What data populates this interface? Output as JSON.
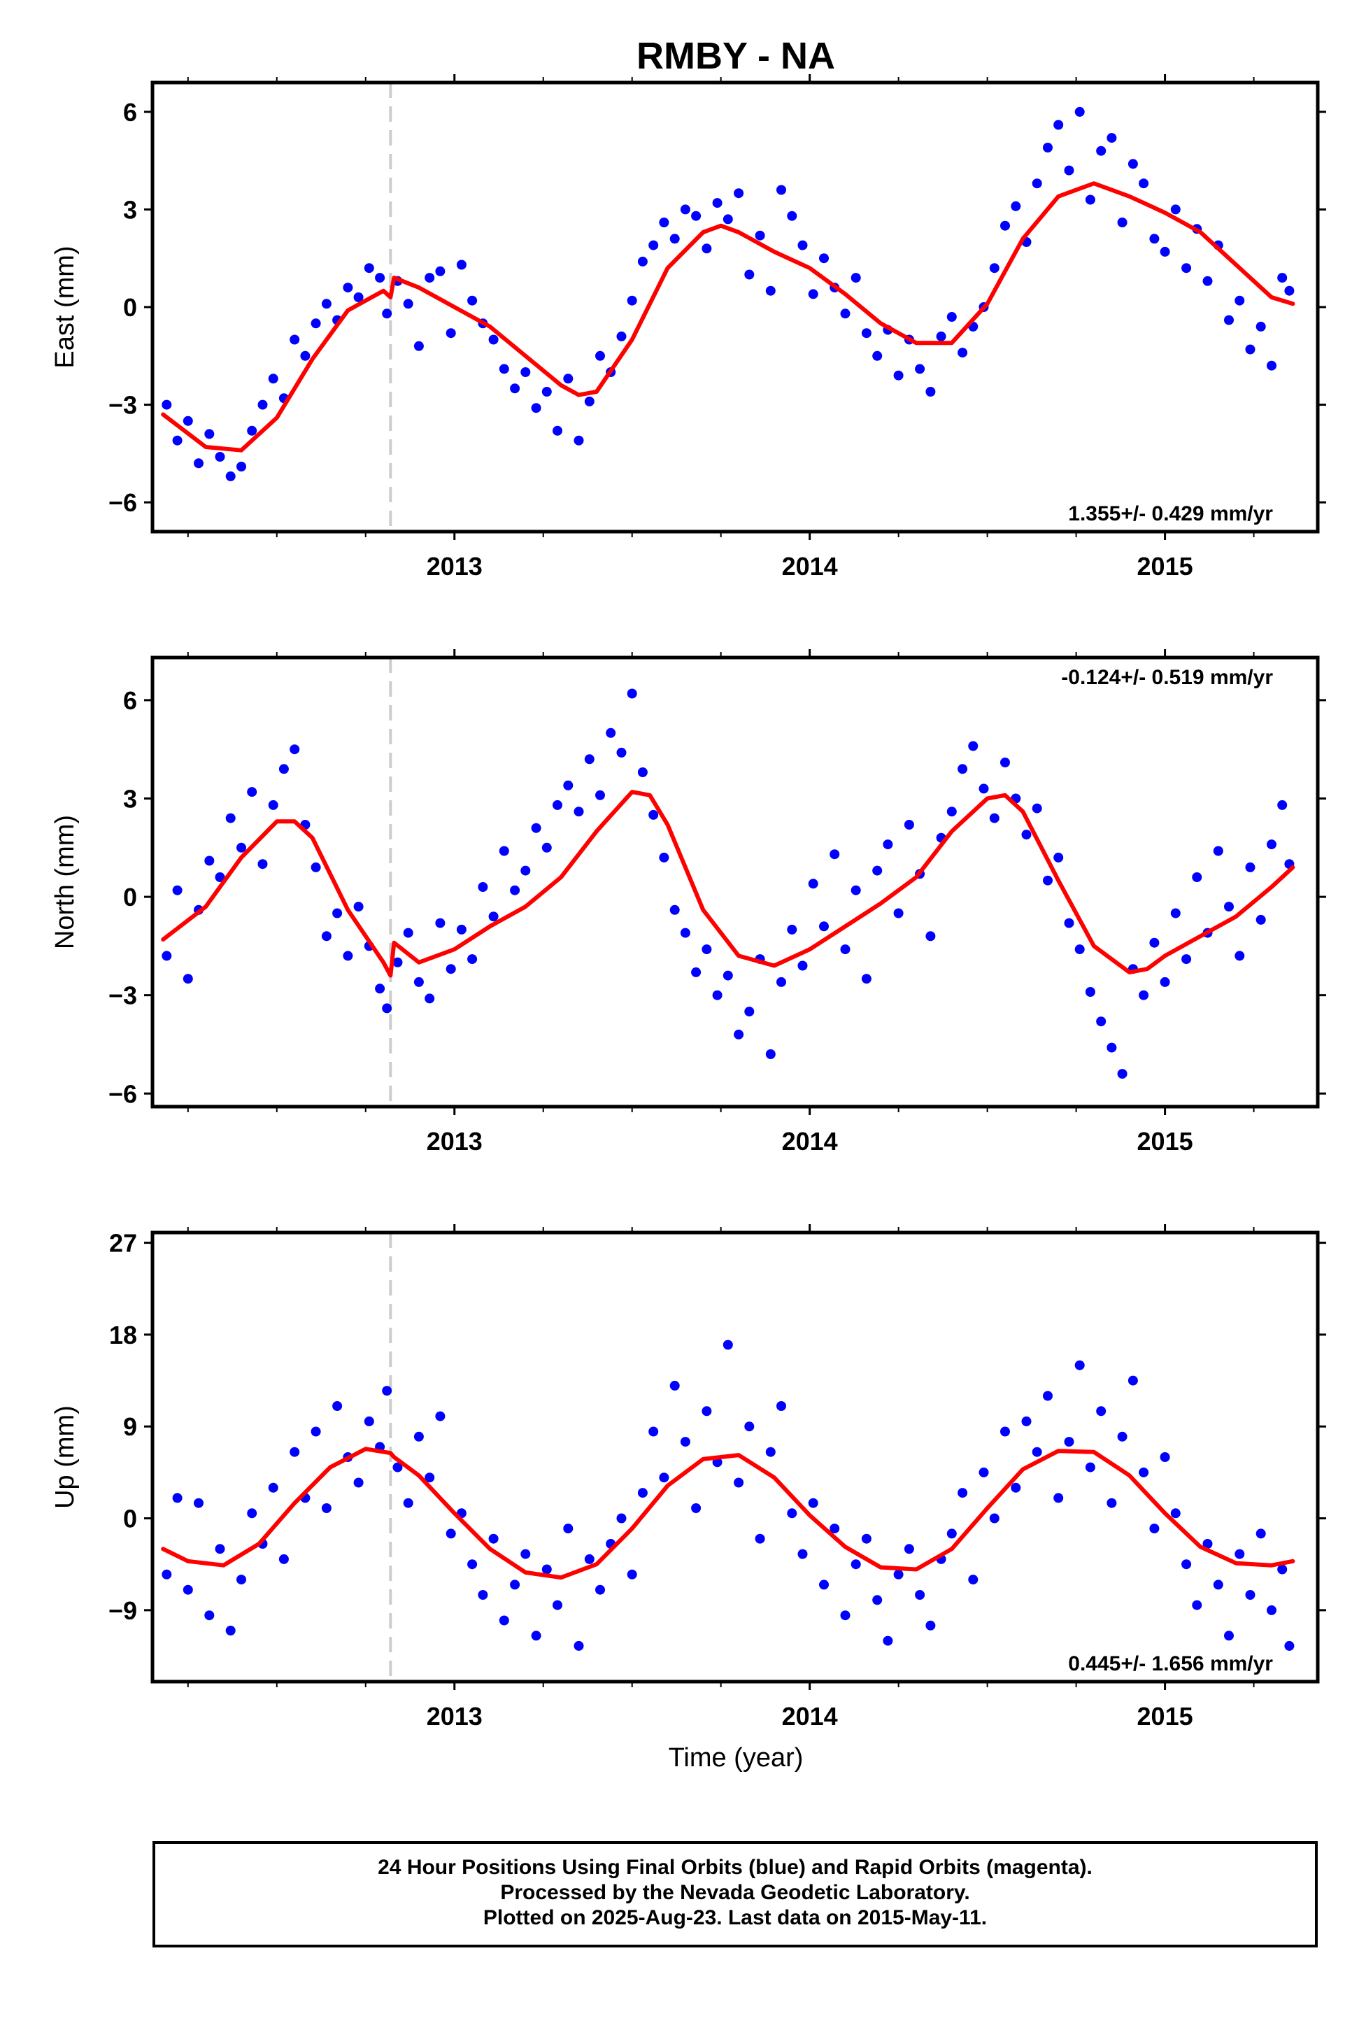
{
  "title": "RMBY - NA",
  "xlabel": "Time (year)",
  "footer": {
    "line1": "24 Hour Positions Using Final Orbits (blue) and Rapid Orbits (magenta).",
    "line2": "Processed by the Nevada Geodetic Laboratory.",
    "line3": "Plotted on 2025-Aug-23. Last data on 2015-May-11."
  },
  "colors": {
    "points": "#0000ff",
    "fit": "#ff0000",
    "event_line": "#cccccc"
  },
  "event_year": 2012.82,
  "chart_data": [
    {
      "type": "scatter",
      "ylabel": "East (mm)",
      "rate_text": "1.355+/- 0.429 mm/yr",
      "rate_position": "bottom-right",
      "xlim": [
        2012.15,
        2015.43
      ],
      "ylim": [
        -6.9,
        6.9
      ],
      "xticks": [
        2013,
        2014,
        2015
      ],
      "yticks": [
        -6,
        -3,
        0,
        3,
        6
      ],
      "fit": {
        "x": [
          2012.18,
          2012.3,
          2012.4,
          2012.5,
          2012.6,
          2012.7,
          2012.8,
          2012.82,
          2012.83,
          2012.9,
          2013.0,
          2013.1,
          2013.2,
          2013.3,
          2013.35,
          2013.4,
          2013.5,
          2013.6,
          2013.7,
          2013.75,
          2013.8,
          2013.9,
          2014.0,
          2014.1,
          2014.2,
          2014.3,
          2014.4,
          2014.5,
          2014.6,
          2014.7,
          2014.8,
          2014.9,
          2015.0,
          2015.1,
          2015.2,
          2015.3,
          2015.36
        ],
        "y": [
          -3.3,
          -4.3,
          -4.4,
          -3.4,
          -1.6,
          -0.1,
          0.5,
          0.3,
          0.9,
          0.6,
          0.0,
          -0.6,
          -1.5,
          -2.4,
          -2.7,
          -2.6,
          -1.0,
          1.2,
          2.3,
          2.5,
          2.3,
          1.7,
          1.2,
          0.4,
          -0.5,
          -1.1,
          -1.1,
          0.1,
          2.1,
          3.4,
          3.8,
          3.4,
          2.9,
          2.3,
          1.3,
          0.3,
          0.1
        ]
      },
      "points": {
        "x": [
          2012.19,
          2012.22,
          2012.25,
          2012.28,
          2012.31,
          2012.34,
          2012.37,
          2012.4,
          2012.43,
          2012.46,
          2012.49,
          2012.52,
          2012.55,
          2012.58,
          2012.61,
          2012.64,
          2012.67,
          2012.7,
          2012.73,
          2012.76,
          2012.79,
          2012.81,
          2012.84,
          2012.87,
          2012.9,
          2012.93,
          2012.96,
          2012.99,
          2013.02,
          2013.05,
          2013.08,
          2013.11,
          2013.14,
          2013.17,
          2013.2,
          2013.23,
          2013.26,
          2013.29,
          2013.32,
          2013.35,
          2013.38,
          2013.41,
          2013.44,
          2013.47,
          2013.5,
          2013.53,
          2013.56,
          2013.59,
          2013.62,
          2013.65,
          2013.68,
          2013.71,
          2013.74,
          2013.77,
          2013.8,
          2013.83,
          2013.86,
          2013.89,
          2013.92,
          2013.95,
          2013.98,
          2014.01,
          2014.04,
          2014.07,
          2014.1,
          2014.13,
          2014.16,
          2014.19,
          2014.22,
          2014.25,
          2014.28,
          2014.31,
          2014.34,
          2014.37,
          2014.4,
          2014.43,
          2014.46,
          2014.49,
          2014.52,
          2014.55,
          2014.58,
          2014.61,
          2014.64,
          2014.67,
          2014.7,
          2014.73,
          2014.76,
          2014.79,
          2014.82,
          2014.85,
          2014.88,
          2014.91,
          2014.94,
          2014.97,
          2015.0,
          2015.03,
          2015.06,
          2015.09,
          2015.12,
          2015.15,
          2015.18,
          2015.21,
          2015.24,
          2015.27,
          2015.3,
          2015.33,
          2015.35
        ],
        "y": [
          -3.0,
          -4.1,
          -3.5,
          -4.8,
          -3.9,
          -4.6,
          -5.2,
          -4.9,
          -3.8,
          -3.0,
          -2.2,
          -2.8,
          -1.0,
          -1.5,
          -0.5,
          0.1,
          -0.4,
          0.6,
          0.3,
          1.2,
          0.9,
          -0.2,
          0.8,
          0.1,
          -1.2,
          0.9,
          1.1,
          -0.8,
          1.3,
          0.2,
          -0.5,
          -1.0,
          -1.9,
          -2.5,
          -2.0,
          -3.1,
          -2.6,
          -3.8,
          -2.2,
          -4.1,
          -2.9,
          -1.5,
          -2.0,
          -0.9,
          0.2,
          1.4,
          1.9,
          2.6,
          2.1,
          3.0,
          2.8,
          1.8,
          3.2,
          2.7,
          3.5,
          1.0,
          2.2,
          0.5,
          3.6,
          2.8,
          1.9,
          0.4,
          1.5,
          0.6,
          -0.2,
          0.9,
          -0.8,
          -1.5,
          -0.7,
          -2.1,
          -1.0,
          -1.9,
          -2.6,
          -0.9,
          -0.3,
          -1.4,
          -0.6,
          0.0,
          1.2,
          2.5,
          3.1,
          2.0,
          3.8,
          4.9,
          5.6,
          4.2,
          6.0,
          3.3,
          4.8,
          5.2,
          2.6,
          4.4,
          3.8,
          2.1,
          1.7,
          3.0,
          1.2,
          2.4,
          0.8,
          1.9,
          -0.4,
          0.2,
          -1.3,
          -0.6,
          -1.8,
          0.9,
          0.5
        ]
      }
    },
    {
      "type": "scatter",
      "ylabel": "North (mm)",
      "rate_text": "-0.124+/- 0.519 mm/yr",
      "rate_position": "top-right",
      "xlim": [
        2012.15,
        2015.43
      ],
      "ylim": [
        -6.4,
        7.3
      ],
      "xticks": [
        2013,
        2014,
        2015
      ],
      "yticks": [
        -6,
        -3,
        0,
        3,
        6
      ],
      "fit": {
        "x": [
          2012.18,
          2012.3,
          2012.4,
          2012.5,
          2012.55,
          2012.6,
          2012.7,
          2012.8,
          2012.82,
          2012.83,
          2012.9,
          2013.0,
          2013.1,
          2013.2,
          2013.3,
          2013.4,
          2013.5,
          2013.55,
          2013.6,
          2013.7,
          2013.8,
          2013.9,
          2014.0,
          2014.1,
          2014.2,
          2014.3,
          2014.4,
          2014.5,
          2014.55,
          2014.6,
          2014.7,
          2014.8,
          2014.9,
          2014.95,
          2015.0,
          2015.1,
          2015.2,
          2015.3,
          2015.36
        ],
        "y": [
          -1.3,
          -0.3,
          1.2,
          2.3,
          2.3,
          1.8,
          -0.4,
          -2.0,
          -2.4,
          -1.4,
          -2.0,
          -1.6,
          -0.9,
          -0.3,
          0.6,
          2.0,
          3.2,
          3.1,
          2.2,
          -0.4,
          -1.8,
          -2.1,
          -1.6,
          -0.9,
          -0.2,
          0.6,
          2.0,
          3.0,
          3.1,
          2.6,
          0.5,
          -1.5,
          -2.3,
          -2.2,
          -1.8,
          -1.2,
          -0.6,
          0.3,
          0.9
        ]
      },
      "points": {
        "x": [
          2012.19,
          2012.22,
          2012.25,
          2012.28,
          2012.31,
          2012.34,
          2012.37,
          2012.4,
          2012.43,
          2012.46,
          2012.49,
          2012.52,
          2012.55,
          2012.58,
          2012.61,
          2012.64,
          2012.67,
          2012.7,
          2012.73,
          2012.76,
          2012.79,
          2012.81,
          2012.84,
          2012.87,
          2012.9,
          2012.93,
          2012.96,
          2012.99,
          2013.02,
          2013.05,
          2013.08,
          2013.11,
          2013.14,
          2013.17,
          2013.2,
          2013.23,
          2013.26,
          2013.29,
          2013.32,
          2013.35,
          2013.38,
          2013.41,
          2013.44,
          2013.47,
          2013.5,
          2013.53,
          2013.56,
          2013.59,
          2013.62,
          2013.65,
          2013.68,
          2013.71,
          2013.74,
          2013.77,
          2013.8,
          2013.83,
          2013.86,
          2013.89,
          2013.92,
          2013.95,
          2013.98,
          2014.01,
          2014.04,
          2014.07,
          2014.1,
          2014.13,
          2014.16,
          2014.19,
          2014.22,
          2014.25,
          2014.28,
          2014.31,
          2014.34,
          2014.37,
          2014.4,
          2014.43,
          2014.46,
          2014.49,
          2014.52,
          2014.55,
          2014.58,
          2014.61,
          2014.64,
          2014.67,
          2014.7,
          2014.73,
          2014.76,
          2014.79,
          2014.82,
          2014.85,
          2014.88,
          2014.91,
          2014.94,
          2014.97,
          2015.0,
          2015.03,
          2015.06,
          2015.09,
          2015.12,
          2015.15,
          2015.18,
          2015.21,
          2015.24,
          2015.27,
          2015.3,
          2015.33,
          2015.35
        ],
        "y": [
          -1.8,
          0.2,
          -2.5,
          -0.4,
          1.1,
          0.6,
          2.4,
          1.5,
          3.2,
          1.0,
          2.8,
          3.9,
          4.5,
          2.2,
          0.9,
          -1.2,
          -0.5,
          -1.8,
          -0.3,
          -1.5,
          -2.8,
          -3.4,
          -2.0,
          -1.1,
          -2.6,
          -3.1,
          -0.8,
          -2.2,
          -1.0,
          -1.9,
          0.3,
          -0.6,
          1.4,
          0.2,
          0.8,
          2.1,
          1.5,
          2.8,
          3.4,
          2.6,
          4.2,
          3.1,
          5.0,
          4.4,
          6.2,
          3.8,
          2.5,
          1.2,
          -0.4,
          -1.1,
          -2.3,
          -1.6,
          -3.0,
          -2.4,
          -4.2,
          -3.5,
          -1.9,
          -4.8,
          -2.6,
          -1.0,
          -2.1,
          0.4,
          -0.9,
          1.3,
          -1.6,
          0.2,
          -2.5,
          0.8,
          1.6,
          -0.5,
          2.2,
          0.7,
          -1.2,
          1.8,
          2.6,
          3.9,
          4.6,
          3.3,
          2.4,
          4.1,
          3.0,
          1.9,
          2.7,
          0.5,
          1.2,
          -0.8,
          -1.6,
          -2.9,
          -3.8,
          -4.6,
          -5.4,
          -2.2,
          -3.0,
          -1.4,
          -2.6,
          -0.5,
          -1.9,
          0.6,
          -1.1,
          1.4,
          -0.3,
          -1.8,
          0.9,
          -0.7,
          1.6,
          2.8,
          1.0
        ]
      }
    },
    {
      "type": "scatter",
      "ylabel": "Up (mm)",
      "rate_text": "0.445+/- 1.656 mm/yr",
      "rate_position": "bottom-right",
      "xlim": [
        2012.15,
        2015.43
      ],
      "ylim": [
        -16,
        28
      ],
      "xticks": [
        2013,
        2014,
        2015
      ],
      "yticks": [
        -9,
        0,
        9,
        18,
        27
      ],
      "fit": {
        "x": [
          2012.18,
          2012.25,
          2012.35,
          2012.45,
          2012.55,
          2012.65,
          2012.75,
          2012.82,
          2012.83,
          2012.9,
          2013.0,
          2013.1,
          2013.2,
          2013.3,
          2013.4,
          2013.5,
          2013.6,
          2013.7,
          2013.8,
          2013.9,
          2014.0,
          2014.1,
          2014.2,
          2014.3,
          2014.4,
          2014.5,
          2014.6,
          2014.7,
          2014.8,
          2014.9,
          2015.0,
          2015.1,
          2015.2,
          2015.3,
          2015.36
        ],
        "y": [
          -3.0,
          -4.2,
          -4.6,
          -2.5,
          1.5,
          5.0,
          6.8,
          6.4,
          6.0,
          4.2,
          0.5,
          -3.0,
          -5.3,
          -5.8,
          -4.5,
          -1.0,
          3.2,
          5.8,
          6.2,
          4.0,
          0.3,
          -2.8,
          -4.8,
          -5.0,
          -3.0,
          1.0,
          4.8,
          6.6,
          6.5,
          4.2,
          0.5,
          -2.8,
          -4.4,
          -4.6,
          -4.2
        ]
      },
      "points": {
        "x": [
          2012.19,
          2012.22,
          2012.25,
          2012.28,
          2012.31,
          2012.34,
          2012.37,
          2012.4,
          2012.43,
          2012.46,
          2012.49,
          2012.52,
          2012.55,
          2012.58,
          2012.61,
          2012.64,
          2012.67,
          2012.7,
          2012.73,
          2012.76,
          2012.79,
          2012.81,
          2012.84,
          2012.87,
          2012.9,
          2012.93,
          2012.96,
          2012.99,
          2013.02,
          2013.05,
          2013.08,
          2013.11,
          2013.14,
          2013.17,
          2013.2,
          2013.23,
          2013.26,
          2013.29,
          2013.32,
          2013.35,
          2013.38,
          2013.41,
          2013.44,
          2013.47,
          2013.5,
          2013.53,
          2013.56,
          2013.59,
          2013.62,
          2013.65,
          2013.68,
          2013.71,
          2013.74,
          2013.77,
          2013.8,
          2013.83,
          2013.86,
          2013.89,
          2013.92,
          2013.95,
          2013.98,
          2014.01,
          2014.04,
          2014.07,
          2014.1,
          2014.13,
          2014.16,
          2014.19,
          2014.22,
          2014.25,
          2014.28,
          2014.31,
          2014.34,
          2014.37,
          2014.4,
          2014.43,
          2014.46,
          2014.49,
          2014.52,
          2014.55,
          2014.58,
          2014.61,
          2014.64,
          2014.67,
          2014.7,
          2014.73,
          2014.76,
          2014.79,
          2014.82,
          2014.85,
          2014.88,
          2014.91,
          2014.94,
          2014.97,
          2015.0,
          2015.03,
          2015.06,
          2015.09,
          2015.12,
          2015.15,
          2015.18,
          2015.21,
          2015.24,
          2015.27,
          2015.3,
          2015.33,
          2015.35
        ],
        "y": [
          -5.5,
          2.0,
          -7.0,
          1.5,
          -9.5,
          -3.0,
          -11.0,
          -6.0,
          0.5,
          -2.5,
          3.0,
          -4.0,
          6.5,
          2.0,
          8.5,
          1.0,
          11.0,
          6.0,
          3.5,
          9.5,
          7.0,
          12.5,
          5.0,
          1.5,
          8.0,
          4.0,
          10.0,
          -1.5,
          0.5,
          -4.5,
          -7.5,
          -2.0,
          -10.0,
          -6.5,
          -3.5,
          -11.5,
          -5.0,
          -8.5,
          -1.0,
          -12.5,
          -4.0,
          -7.0,
          -2.5,
          0.0,
          -5.5,
          2.5,
          8.5,
          4.0,
          13.0,
          7.5,
          1.0,
          10.5,
          5.5,
          17.0,
          3.5,
          9.0,
          -2.0,
          6.5,
          11.0,
          0.5,
          -3.5,
          1.5,
          -6.5,
          -1.0,
          -9.5,
          -4.5,
          -2.0,
          -8.0,
          -12.0,
          -5.5,
          -3.0,
          -7.5,
          -10.5,
          -4.0,
          -1.5,
          2.5,
          -6.0,
          4.5,
          0.0,
          8.5,
          3.0,
          9.5,
          6.5,
          12.0,
          2.0,
          7.5,
          15.0,
          5.0,
          10.5,
          1.5,
          8.0,
          13.5,
          4.5,
          -1.0,
          6.0,
          0.5,
          -4.5,
          -8.5,
          -2.5,
          -6.5,
          -11.5,
          -3.5,
          -7.5,
          -1.5,
          -9.0,
          -5.0,
          -12.5
        ]
      }
    }
  ]
}
